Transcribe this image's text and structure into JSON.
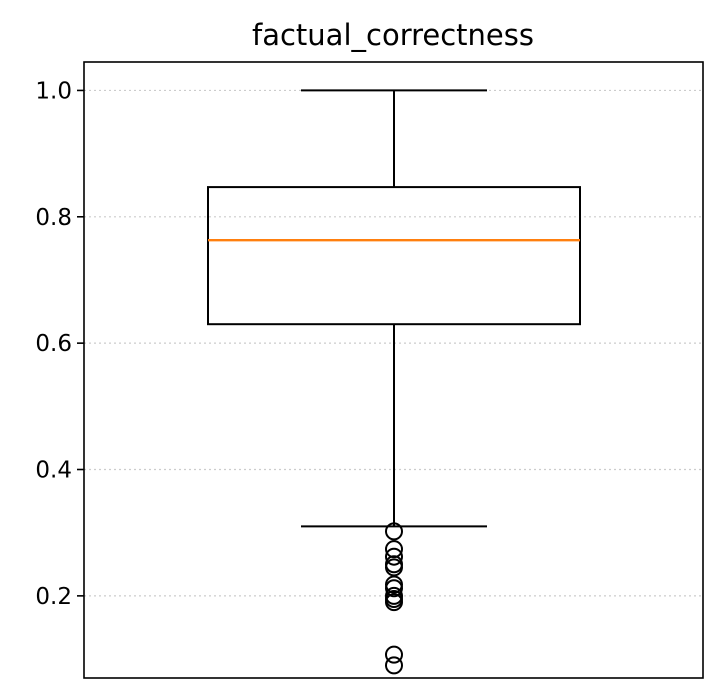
{
  "chart_data": {
    "type": "box",
    "title": "factual_correctness",
    "xlabel": "",
    "ylabel": "",
    "ylim": [
      0.07,
      1.045
    ],
    "yticks": [
      {
        "value": 0.2,
        "label": "0.2"
      },
      {
        "value": 0.4,
        "label": "0.4"
      },
      {
        "value": 0.6,
        "label": "0.6"
      },
      {
        "value": 0.8,
        "label": "0.8"
      },
      {
        "value": 1.0,
        "label": "1.0"
      }
    ],
    "grid": {
      "y": true,
      "x": false,
      "style": "dotted"
    },
    "box": {
      "whisker_low": 0.31,
      "q1": 0.63,
      "median": 0.763,
      "q3": 0.847,
      "whisker_high": 1.0
    },
    "outliers": [
      0.302,
      0.274,
      0.262,
      0.25,
      0.245,
      0.218,
      0.212,
      0.2,
      0.195,
      0.19,
      0.107,
      0.09
    ],
    "colors": {
      "box": "#000000",
      "median": "#ff7f0e",
      "grid": "#cccccc",
      "outlier": "#000000"
    }
  }
}
